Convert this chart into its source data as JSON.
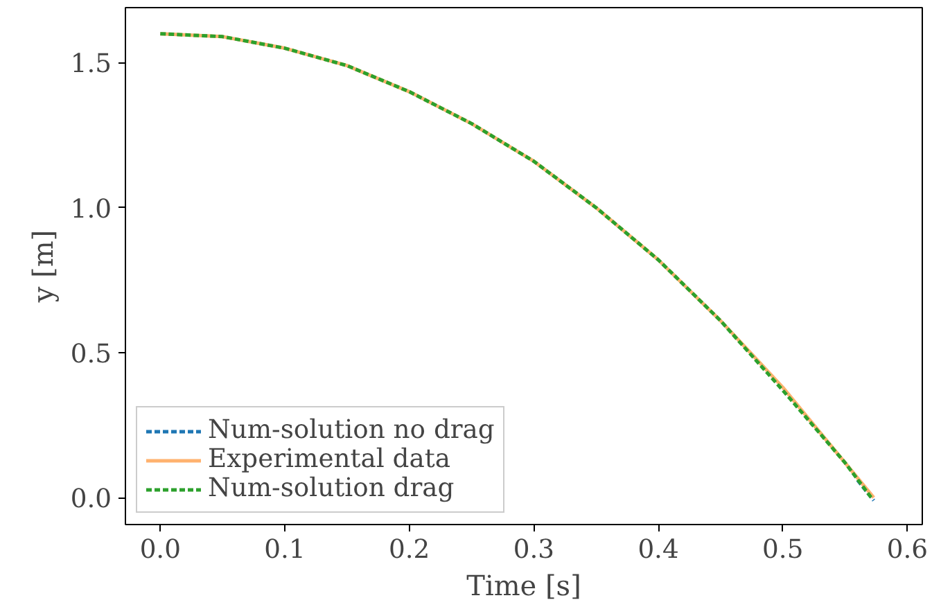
{
  "chart_data": {
    "type": "line",
    "xlabel": "Time [s]",
    "ylabel": "y [m]",
    "xlim": [
      -0.028,
      0.612
    ],
    "ylim": [
      -0.093,
      1.69
    ],
    "xticks": [
      {
        "value": 0,
        "label": "0.0"
      },
      0.1,
      0.2,
      0.3,
      0.4,
      0.5,
      0.6
    ],
    "yticks": [
      {
        "value": 0,
        "label": "0.0"
      },
      0.5,
      {
        "value": 1,
        "label": "1.0"
      },
      1.5
    ],
    "grid": false,
    "legend": "bottom left",
    "marker": "none",
    "series": [
      {
        "name": "Num-solution no drag",
        "color": "#1f77b4",
        "line_style": "dashed",
        "x": [
          0.56,
          0.573
        ],
        "values": [
          0.06,
          -0.01
        ]
      },
      {
        "name": "Experimental data",
        "color": "#ffb26e",
        "line_style": "solid",
        "x": [
          0,
          0.05,
          0.1,
          0.15,
          0.2,
          0.25,
          0.3,
          0.35,
          0.4,
          0.45,
          0.5,
          0.55,
          0.573
        ],
        "values": [
          1.6,
          1.59,
          1.55,
          1.49,
          1.4,
          1.29,
          1.16,
          1.0,
          0.82,
          0.61,
          0.38,
          0.12,
          0.0
        ]
      },
      {
        "name": "Num-solution drag",
        "color": "#2ca02c",
        "line_style": "dashed",
        "x": [
          0,
          0.05,
          0.1,
          0.15,
          0.2,
          0.25,
          0.3,
          0.35,
          0.4,
          0.45,
          0.5,
          0.55,
          0.571
        ],
        "values": [
          1.6,
          1.59,
          1.55,
          1.49,
          1.4,
          1.29,
          1.16,
          1.0,
          0.82,
          0.61,
          0.37,
          0.12,
          0.0
        ]
      }
    ]
  }
}
